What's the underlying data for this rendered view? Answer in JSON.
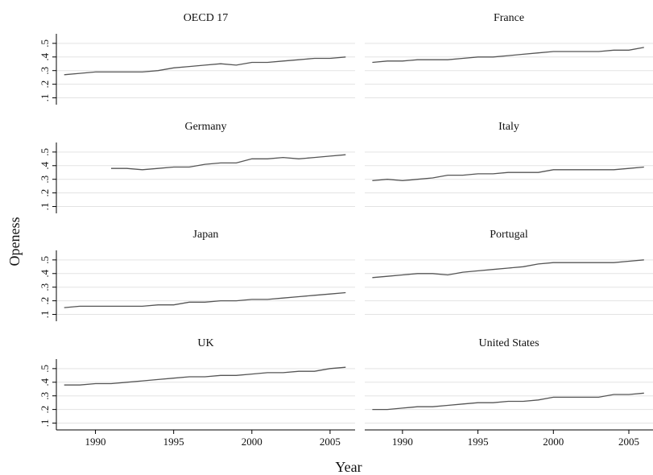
{
  "chart_data": {
    "type": "line",
    "layout": "small-multiples",
    "ylabel": "Openess",
    "xlabel": "Year",
    "xlim": [
      1987.5,
      2006.6
    ],
    "ylim": [
      0.05,
      0.57
    ],
    "yticks": [
      0.1,
      0.2,
      0.3,
      0.4,
      0.5
    ],
    "ytick_labels": [
      ".1",
      ".2",
      ".3",
      ".4",
      ".5"
    ],
    "xticks": [
      1990,
      1995,
      2000,
      2005
    ],
    "xtick_labels": [
      "1990",
      "1995",
      "2000",
      "2005"
    ],
    "grid": true,
    "line_color": "#555555",
    "panels": [
      {
        "title": "OECD 17",
        "x": [
          1988,
          1989,
          1990,
          1991,
          1992,
          1993,
          1994,
          1995,
          1996,
          1997,
          1998,
          1999,
          2000,
          2001,
          2002,
          2003,
          2004,
          2005,
          2006
        ],
        "values": [
          0.27,
          0.28,
          0.29,
          0.29,
          0.29,
          0.29,
          0.3,
          0.32,
          0.33,
          0.34,
          0.35,
          0.34,
          0.36,
          0.36,
          0.37,
          0.38,
          0.39,
          0.39,
          0.4
        ]
      },
      {
        "title": "France",
        "x": [
          1988,
          1989,
          1990,
          1991,
          1992,
          1993,
          1994,
          1995,
          1996,
          1997,
          1998,
          1999,
          2000,
          2001,
          2002,
          2003,
          2004,
          2005,
          2006
        ],
        "values": [
          0.36,
          0.37,
          0.37,
          0.38,
          0.38,
          0.38,
          0.39,
          0.4,
          0.4,
          0.41,
          0.42,
          0.43,
          0.44,
          0.44,
          0.44,
          0.44,
          0.45,
          0.45,
          0.47
        ]
      },
      {
        "title": "Germany",
        "x": [
          1991,
          1992,
          1993,
          1994,
          1995,
          1996,
          1997,
          1998,
          1999,
          2000,
          2001,
          2002,
          2003,
          2004,
          2005,
          2006
        ],
        "values": [
          0.38,
          0.38,
          0.37,
          0.38,
          0.39,
          0.39,
          0.41,
          0.42,
          0.42,
          0.45,
          0.45,
          0.46,
          0.45,
          0.46,
          0.47,
          0.48
        ]
      },
      {
        "title": "Italy",
        "x": [
          1988,
          1989,
          1990,
          1991,
          1992,
          1993,
          1994,
          1995,
          1996,
          1997,
          1998,
          1999,
          2000,
          2001,
          2002,
          2003,
          2004,
          2005,
          2006
        ],
        "values": [
          0.29,
          0.3,
          0.29,
          0.3,
          0.31,
          0.33,
          0.33,
          0.34,
          0.34,
          0.35,
          0.35,
          0.35,
          0.37,
          0.37,
          0.37,
          0.37,
          0.37,
          0.38,
          0.39
        ]
      },
      {
        "title": "Japan",
        "x": [
          1988,
          1989,
          1990,
          1991,
          1992,
          1993,
          1994,
          1995,
          1996,
          1997,
          1998,
          1999,
          2000,
          2001,
          2002,
          2003,
          2004,
          2005,
          2006
        ],
        "values": [
          0.15,
          0.16,
          0.16,
          0.16,
          0.16,
          0.16,
          0.17,
          0.17,
          0.19,
          0.19,
          0.2,
          0.2,
          0.21,
          0.21,
          0.22,
          0.23,
          0.24,
          0.25,
          0.26
        ]
      },
      {
        "title": "Portugal",
        "x": [
          1988,
          1989,
          1990,
          1991,
          1992,
          1993,
          1994,
          1995,
          1996,
          1997,
          1998,
          1999,
          2000,
          2001,
          2002,
          2003,
          2004,
          2005,
          2006
        ],
        "values": [
          0.37,
          0.38,
          0.39,
          0.4,
          0.4,
          0.39,
          0.41,
          0.42,
          0.43,
          0.44,
          0.45,
          0.47,
          0.48,
          0.48,
          0.48,
          0.48,
          0.48,
          0.49,
          0.5
        ]
      },
      {
        "title": "UK",
        "x": [
          1988,
          1989,
          1990,
          1991,
          1992,
          1993,
          1994,
          1995,
          1996,
          1997,
          1998,
          1999,
          2000,
          2001,
          2002,
          2003,
          2004,
          2005,
          2006
        ],
        "values": [
          0.38,
          0.38,
          0.39,
          0.39,
          0.4,
          0.41,
          0.42,
          0.43,
          0.44,
          0.44,
          0.45,
          0.45,
          0.46,
          0.47,
          0.47,
          0.48,
          0.48,
          0.5,
          0.51
        ]
      },
      {
        "title": "United States",
        "x": [
          1988,
          1989,
          1990,
          1991,
          1992,
          1993,
          1994,
          1995,
          1996,
          1997,
          1998,
          1999,
          2000,
          2001,
          2002,
          2003,
          2004,
          2005,
          2006
        ],
        "values": [
          0.2,
          0.2,
          0.21,
          0.22,
          0.22,
          0.23,
          0.24,
          0.25,
          0.25,
          0.26,
          0.26,
          0.27,
          0.29,
          0.29,
          0.29,
          0.29,
          0.31,
          0.31,
          0.32
        ]
      }
    ]
  }
}
